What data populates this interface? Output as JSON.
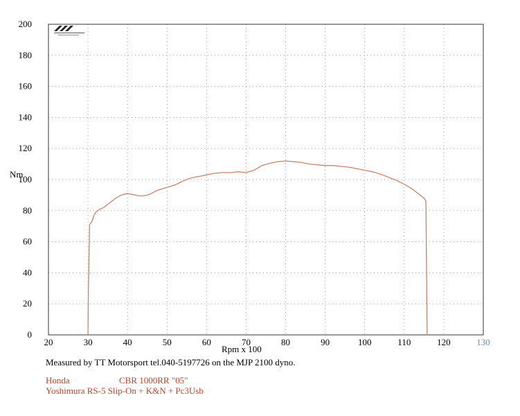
{
  "chart_data": {
    "type": "line",
    "title": "",
    "xlabel": "Rpm x 100",
    "ylabel": "Nm",
    "xlim": [
      20,
      130
    ],
    "ylim": [
      0,
      200
    ],
    "x_ticks": [
      20,
      30,
      40,
      50,
      60,
      70,
      80,
      90,
      100,
      110,
      120,
      130
    ],
    "y_ticks": [
      0,
      20,
      40,
      60,
      80,
      100,
      120,
      140,
      160,
      180,
      200
    ],
    "grid": true,
    "series": [
      {
        "name": "",
        "color": "#c8846a",
        "points": [
          [
            30.0,
            0
          ],
          [
            30.1,
            30
          ],
          [
            30.4,
            71
          ],
          [
            31.0,
            73
          ],
          [
            31.5,
            77
          ],
          [
            32.0,
            79
          ],
          [
            33.0,
            81
          ],
          [
            34.0,
            82
          ],
          [
            35.0,
            84
          ],
          [
            36.0,
            86
          ],
          [
            37.0,
            88
          ],
          [
            38.0,
            89.5
          ],
          [
            39.0,
            90.5
          ],
          [
            40.0,
            91
          ],
          [
            41.0,
            90.5
          ],
          [
            42.0,
            90
          ],
          [
            43.0,
            89.5
          ],
          [
            44.0,
            89.5
          ],
          [
            45.0,
            90
          ],
          [
            46.0,
            91
          ],
          [
            47.0,
            92.5
          ],
          [
            48.0,
            93.5
          ],
          [
            50.0,
            95
          ],
          [
            52.0,
            96.5
          ],
          [
            54.0,
            99
          ],
          [
            56.0,
            101
          ],
          [
            58.0,
            102
          ],
          [
            60.0,
            103
          ],
          [
            62.0,
            104
          ],
          [
            64.0,
            104.5
          ],
          [
            66.0,
            104.5
          ],
          [
            68.0,
            105
          ],
          [
            70.0,
            104.5
          ],
          [
            72.0,
            106
          ],
          [
            74.0,
            109
          ],
          [
            76.0,
            110.5
          ],
          [
            78.0,
            111.5
          ],
          [
            80.0,
            112
          ],
          [
            82.0,
            111.5
          ],
          [
            84.0,
            111
          ],
          [
            86.0,
            110
          ],
          [
            88.0,
            109.5
          ],
          [
            90.0,
            109
          ],
          [
            92.0,
            109
          ],
          [
            94.0,
            108.5
          ],
          [
            96.0,
            108
          ],
          [
            98.0,
            107
          ],
          [
            100.0,
            106
          ],
          [
            102.0,
            105
          ],
          [
            104.0,
            103.5
          ],
          [
            106.0,
            101.5
          ],
          [
            108.0,
            99.5
          ],
          [
            110.0,
            97
          ],
          [
            112.0,
            94
          ],
          [
            114.0,
            90
          ],
          [
            115.0,
            88
          ],
          [
            115.5,
            86
          ],
          [
            115.6,
            50
          ],
          [
            115.8,
            0
          ]
        ]
      }
    ]
  },
  "caption": "Measured by TT Motorsport tel.040-5197726 on the MJP 2100 dyno.",
  "bike": {
    "make": "Honda",
    "model": "CBR 1000RR \"05\"",
    "mods": "Yoshimura RS-5 Slip-On + K&N + Pc3Usb"
  },
  "colors": {
    "curve": "#c8846a",
    "bike_text": "#b5462a",
    "frame": "#333333",
    "grid": "#9a9a9a"
  },
  "logo_icon": "mjp-logo-icon"
}
